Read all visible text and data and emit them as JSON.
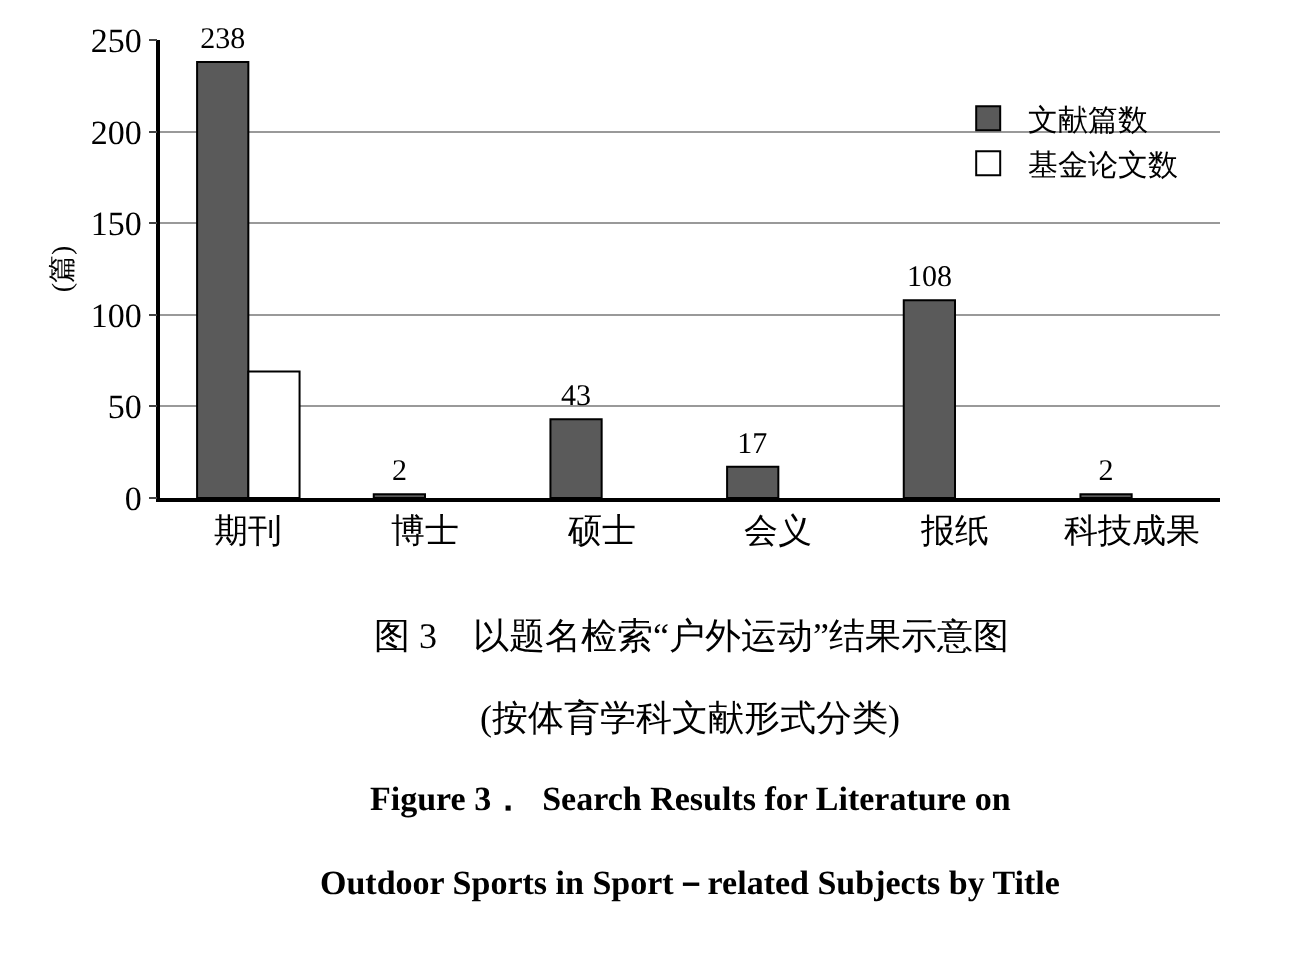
{
  "chart_data": {
    "type": "bar",
    "ylabel": "(篇)",
    "categories": [
      "期刊",
      "博士",
      "硕士",
      "会义",
      "报纸",
      "科技成果"
    ],
    "series": [
      {
        "name": "文献篇数",
        "color": "#5a5a5a",
        "values": [
          238,
          2,
          43,
          17,
          108,
          2
        ],
        "value_labels": [
          "238",
          "2",
          "43",
          "17",
          "108",
          "2"
        ]
      },
      {
        "name": "基金论文数",
        "color": "#ffffff",
        "values": [
          69,
          null,
          null,
          null,
          null,
          null
        ]
      }
    ],
    "ylim": [
      0,
      250
    ],
    "yticks": [
      0,
      50,
      100,
      150,
      200,
      250
    ],
    "grid": "y",
    "legend": "top right",
    "annotations": [
      "图 3　以题名检索“户外运动”结果示意图",
      "(按体育学科文献形式分类)",
      "Figure 3．  Search Results for Literature on",
      "Outdoor Sports in Sport－related Subjects by Title"
    ]
  }
}
